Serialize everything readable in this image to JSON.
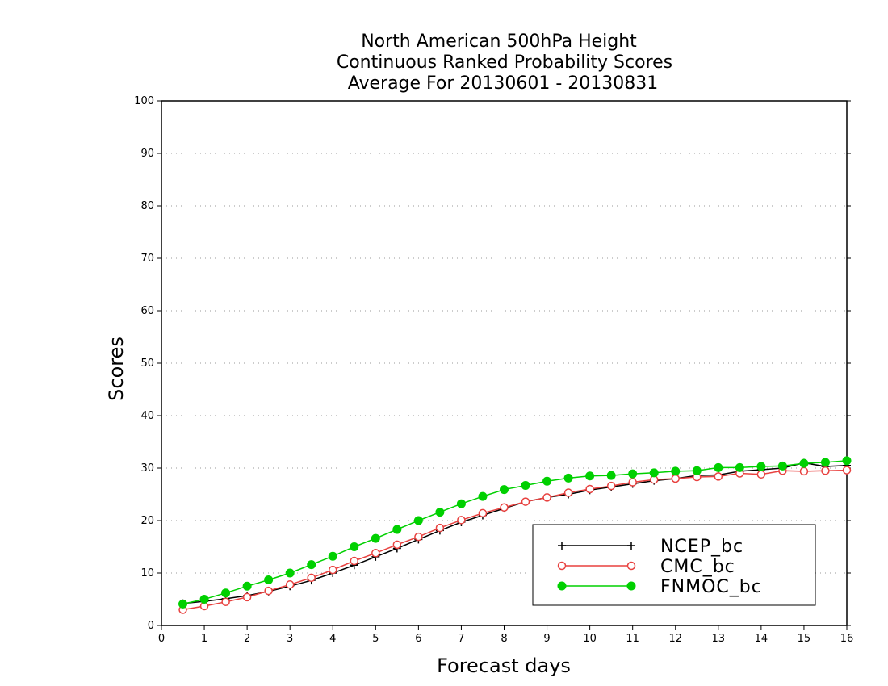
{
  "chart_data": {
    "type": "line",
    "title": [
      "North American 500hPa Height",
      "Continuous Ranked Probability Scores",
      "Average For 20130601 - 20130831"
    ],
    "xlabel": "Forecast days",
    "ylabel": "Scores",
    "xlim": [
      0,
      16
    ],
    "ylim": [
      0,
      100
    ],
    "xticks": [
      0,
      1,
      2,
      3,
      4,
      5,
      6,
      7,
      8,
      9,
      10,
      11,
      12,
      13,
      14,
      15,
      16
    ],
    "yticks": [
      0,
      10,
      20,
      30,
      40,
      50,
      60,
      70,
      80,
      90,
      100
    ],
    "grid": true,
    "legend_position": "bottom-right",
    "x": [
      0.5,
      1,
      1.5,
      2,
      2.5,
      3,
      3.5,
      4,
      4.5,
      5,
      5.5,
      6,
      6.5,
      7,
      7.5,
      8,
      8.5,
      9,
      9.5,
      10,
      10.5,
      11,
      11.5,
      12,
      12.5,
      13,
      13.5,
      14,
      14.5,
      15,
      15.5,
      16
    ],
    "series": [
      {
        "name": "NCEP_bc",
        "color": "#000000",
        "marker": "plus",
        "values": [
          4.2,
          4.6,
          5.1,
          5.7,
          6.5,
          7.5,
          8.6,
          10.0,
          11.5,
          13.1,
          14.7,
          16.4,
          18.1,
          19.7,
          21.0,
          22.3,
          23.6,
          24.4,
          25.0,
          25.8,
          26.4,
          27.0,
          27.6,
          28.0,
          28.6,
          28.7,
          29.4,
          29.7,
          30.0,
          31.0,
          30.3,
          30.5
        ]
      },
      {
        "name": "CMC_bc",
        "color": "#e8413f",
        "marker": "open-circle",
        "values": [
          3.0,
          3.7,
          4.5,
          5.4,
          6.6,
          7.8,
          9.1,
          10.6,
          12.3,
          13.8,
          15.4,
          16.9,
          18.6,
          20.1,
          21.4,
          22.5,
          23.6,
          24.4,
          25.3,
          26.0,
          26.6,
          27.3,
          27.8,
          28.0,
          28.3,
          28.4,
          29.0,
          28.8,
          29.5,
          29.4,
          29.5,
          29.6
        ]
      },
      {
        "name": "FNMOC_bc",
        "color": "#00d000",
        "marker": "filled-circle",
        "values": [
          4.1,
          5.0,
          6.2,
          7.5,
          8.7,
          10.0,
          11.6,
          13.2,
          15.0,
          16.6,
          18.3,
          20.0,
          21.6,
          23.2,
          24.6,
          25.9,
          26.7,
          27.5,
          28.1,
          28.5,
          28.6,
          28.9,
          29.1,
          29.4,
          29.5,
          30.1,
          30.1,
          30.3,
          30.4,
          30.9,
          31.1,
          31.4
        ]
      }
    ]
  }
}
